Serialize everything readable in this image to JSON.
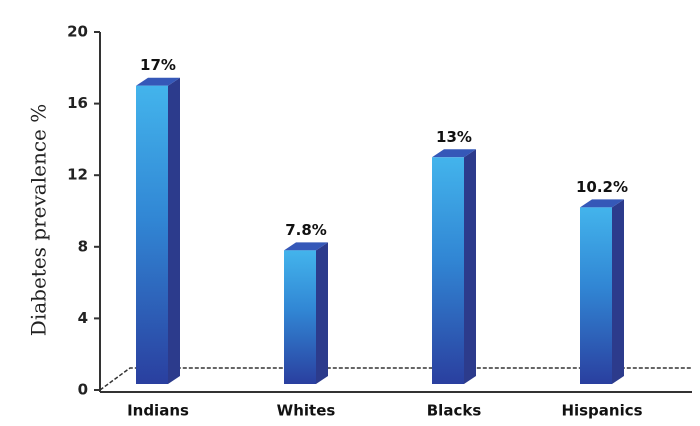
{
  "chart_data": {
    "type": "bar3d",
    "y_label": "Diabetes prevalence %",
    "categories": [
      "Indians",
      "Whites",
      "Blacks",
      "Hispanics"
    ],
    "values": [
      17,
      7.8,
      13,
      10.2
    ],
    "value_labels": [
      "17%",
      "7.8%",
      "13%",
      "10.2%"
    ],
    "color": "#2f8fd8",
    "ylim": [
      0,
      20
    ],
    "yticks": [
      0,
      4,
      8,
      12,
      16,
      20
    ]
  }
}
